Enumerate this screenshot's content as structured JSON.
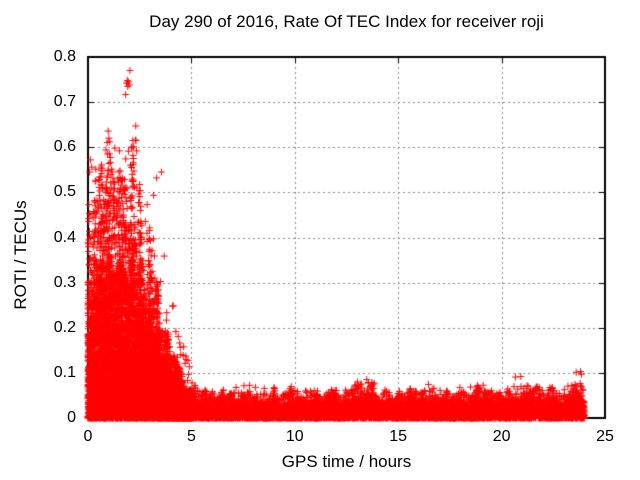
{
  "chart_data": {
    "type": "scatter",
    "title": "Day 290 of 2016, Rate Of TEC Index for receiver roji",
    "xlabel": "GPS time / hours",
    "ylabel": "ROTI / TECUs",
    "xlim": [
      0,
      25
    ],
    "ylim": [
      0,
      0.8
    ],
    "grid": true,
    "legend": "none",
    "xticks": [
      {
        "v": 0,
        "label": "0"
      },
      {
        "v": 5,
        "label": "5"
      },
      {
        "v": 10,
        "label": "10"
      },
      {
        "v": 15,
        "label": "15"
      },
      {
        "v": 20,
        "label": "20"
      },
      {
        "v": 25,
        "label": "25"
      }
    ],
    "yticks": [
      {
        "v": 0.0,
        "label": "0"
      },
      {
        "v": 0.1,
        "label": "0.1"
      },
      {
        "v": 0.2,
        "label": "0.2"
      },
      {
        "v": 0.3,
        "label": "0.3"
      },
      {
        "v": 0.4,
        "label": "0.4"
      },
      {
        "v": 0.5,
        "label": "0.5"
      },
      {
        "v": 0.6,
        "label": "0.6"
      },
      {
        "v": 0.7,
        "label": "0.7"
      },
      {
        "v": 0.8,
        "label": "0.8"
      }
    ],
    "style": {
      "marker": "plus",
      "marker_color": "#ff0000",
      "marker_size": 7,
      "grid_color": "#8a8a8a",
      "frame_color": "#000000",
      "background": "#ffffff"
    },
    "data_t_range": [
      0,
      24.0
    ],
    "envelope_max": [
      [
        0,
        0.58
      ],
      [
        0.2,
        0.62
      ],
      [
        0.4,
        0.55
      ],
      [
        0.7,
        0.5
      ],
      [
        0.9,
        0.62
      ],
      [
        1.1,
        0.61
      ],
      [
        1.4,
        0.57
      ],
      [
        1.6,
        0.6
      ],
      [
        1.8,
        0.55
      ],
      [
        2.0,
        0.6
      ],
      [
        2.3,
        0.62
      ],
      [
        2.5,
        0.52
      ],
      [
        2.8,
        0.48
      ],
      [
        3.0,
        0.45
      ],
      [
        3.3,
        0.42
      ],
      [
        3.6,
        0.4
      ],
      [
        3.9,
        0.32
      ],
      [
        4.2,
        0.24
      ],
      [
        4.5,
        0.17
      ],
      [
        4.8,
        0.13
      ],
      [
        5.0,
        0.11
      ],
      [
        5.3,
        0.08
      ],
      [
        5.6,
        0.065
      ],
      [
        6.0,
        0.055
      ],
      [
        6.5,
        0.05
      ],
      [
        7.0,
        0.075
      ],
      [
        7.5,
        0.09
      ],
      [
        8.0,
        0.065
      ],
      [
        8.5,
        0.07
      ],
      [
        9.0,
        0.062
      ],
      [
        9.5,
        0.058
      ],
      [
        10.0,
        0.068
      ],
      [
        10.5,
        0.062
      ],
      [
        11.0,
        0.058
      ],
      [
        11.5,
        0.068
      ],
      [
        12.0,
        0.062
      ],
      [
        12.5,
        0.068
      ],
      [
        13.0,
        0.078
      ],
      [
        13.5,
        0.098
      ],
      [
        13.8,
        0.085
      ],
      [
        14.2,
        0.068
      ],
      [
        14.6,
        0.06
      ],
      [
        15.0,
        0.058
      ],
      [
        15.5,
        0.068
      ],
      [
        16.0,
        0.062
      ],
      [
        16.5,
        0.082
      ],
      [
        17.0,
        0.068
      ],
      [
        17.5,
        0.058
      ],
      [
        18.0,
        0.062
      ],
      [
        18.5,
        0.088
      ],
      [
        19.0,
        0.078
      ],
      [
        19.5,
        0.068
      ],
      [
        20.0,
        0.062
      ],
      [
        20.5,
        0.072
      ],
      [
        21.0,
        0.088
      ],
      [
        21.5,
        0.068
      ],
      [
        22.0,
        0.062
      ],
      [
        22.5,
        0.068
      ],
      [
        23.0,
        0.072
      ],
      [
        23.3,
        0.068
      ],
      [
        23.6,
        0.09
      ],
      [
        23.85,
        0.115
      ],
      [
        24.0,
        0.1
      ]
    ],
    "envelope_dense": [
      [
        0,
        0.26
      ],
      [
        0.3,
        0.3
      ],
      [
        0.7,
        0.32
      ],
      [
        1.0,
        0.3
      ],
      [
        1.3,
        0.27
      ],
      [
        1.6,
        0.29
      ],
      [
        1.9,
        0.31
      ],
      [
        2.2,
        0.32
      ],
      [
        2.5,
        0.28
      ],
      [
        2.8,
        0.24
      ],
      [
        3.1,
        0.2
      ],
      [
        3.4,
        0.17
      ],
      [
        3.7,
        0.13
      ],
      [
        4.0,
        0.1
      ],
      [
        4.3,
        0.075
      ],
      [
        4.6,
        0.06
      ],
      [
        5.0,
        0.045
      ],
      [
        5.5,
        0.038
      ],
      [
        6.0,
        0.032
      ],
      [
        7.0,
        0.036
      ],
      [
        8.0,
        0.033
      ],
      [
        9.0,
        0.035
      ],
      [
        10.0,
        0.037
      ],
      [
        11.0,
        0.033
      ],
      [
        12.0,
        0.036
      ],
      [
        13.0,
        0.04
      ],
      [
        13.5,
        0.045
      ],
      [
        14.0,
        0.036
      ],
      [
        15.0,
        0.034
      ],
      [
        16.0,
        0.036
      ],
      [
        17.0,
        0.037
      ],
      [
        18.0,
        0.036
      ],
      [
        18.5,
        0.042
      ],
      [
        19.0,
        0.04
      ],
      [
        20.0,
        0.036
      ],
      [
        21.0,
        0.04
      ],
      [
        22.0,
        0.036
      ],
      [
        23.0,
        0.038
      ],
      [
        23.5,
        0.044
      ],
      [
        24.0,
        0.05
      ]
    ],
    "notable_points": [
      [
        2.03,
        0.77
      ],
      [
        1.9,
        0.748
      ],
      [
        1.95,
        0.745
      ],
      [
        1.87,
        0.742
      ],
      [
        1.99,
        0.738
      ],
      [
        1.92,
        0.735
      ],
      [
        1.82,
        0.717
      ],
      [
        3.32,
        0.532
      ],
      [
        0.12,
        0.572
      ],
      [
        0.18,
        0.556
      ],
      [
        0.08,
        0.545
      ],
      [
        1.05,
        0.612
      ],
      [
        1.3,
        0.598
      ],
      [
        1.52,
        0.592
      ],
      [
        0.95,
        0.585
      ],
      [
        2.1,
        0.6
      ],
      [
        2.32,
        0.615
      ],
      [
        3.55,
        0.545
      ]
    ],
    "rendering": {
      "seed": 7,
      "n_active": 9500,
      "n_quiet": 8000,
      "generated_from_envelopes": true
    }
  }
}
